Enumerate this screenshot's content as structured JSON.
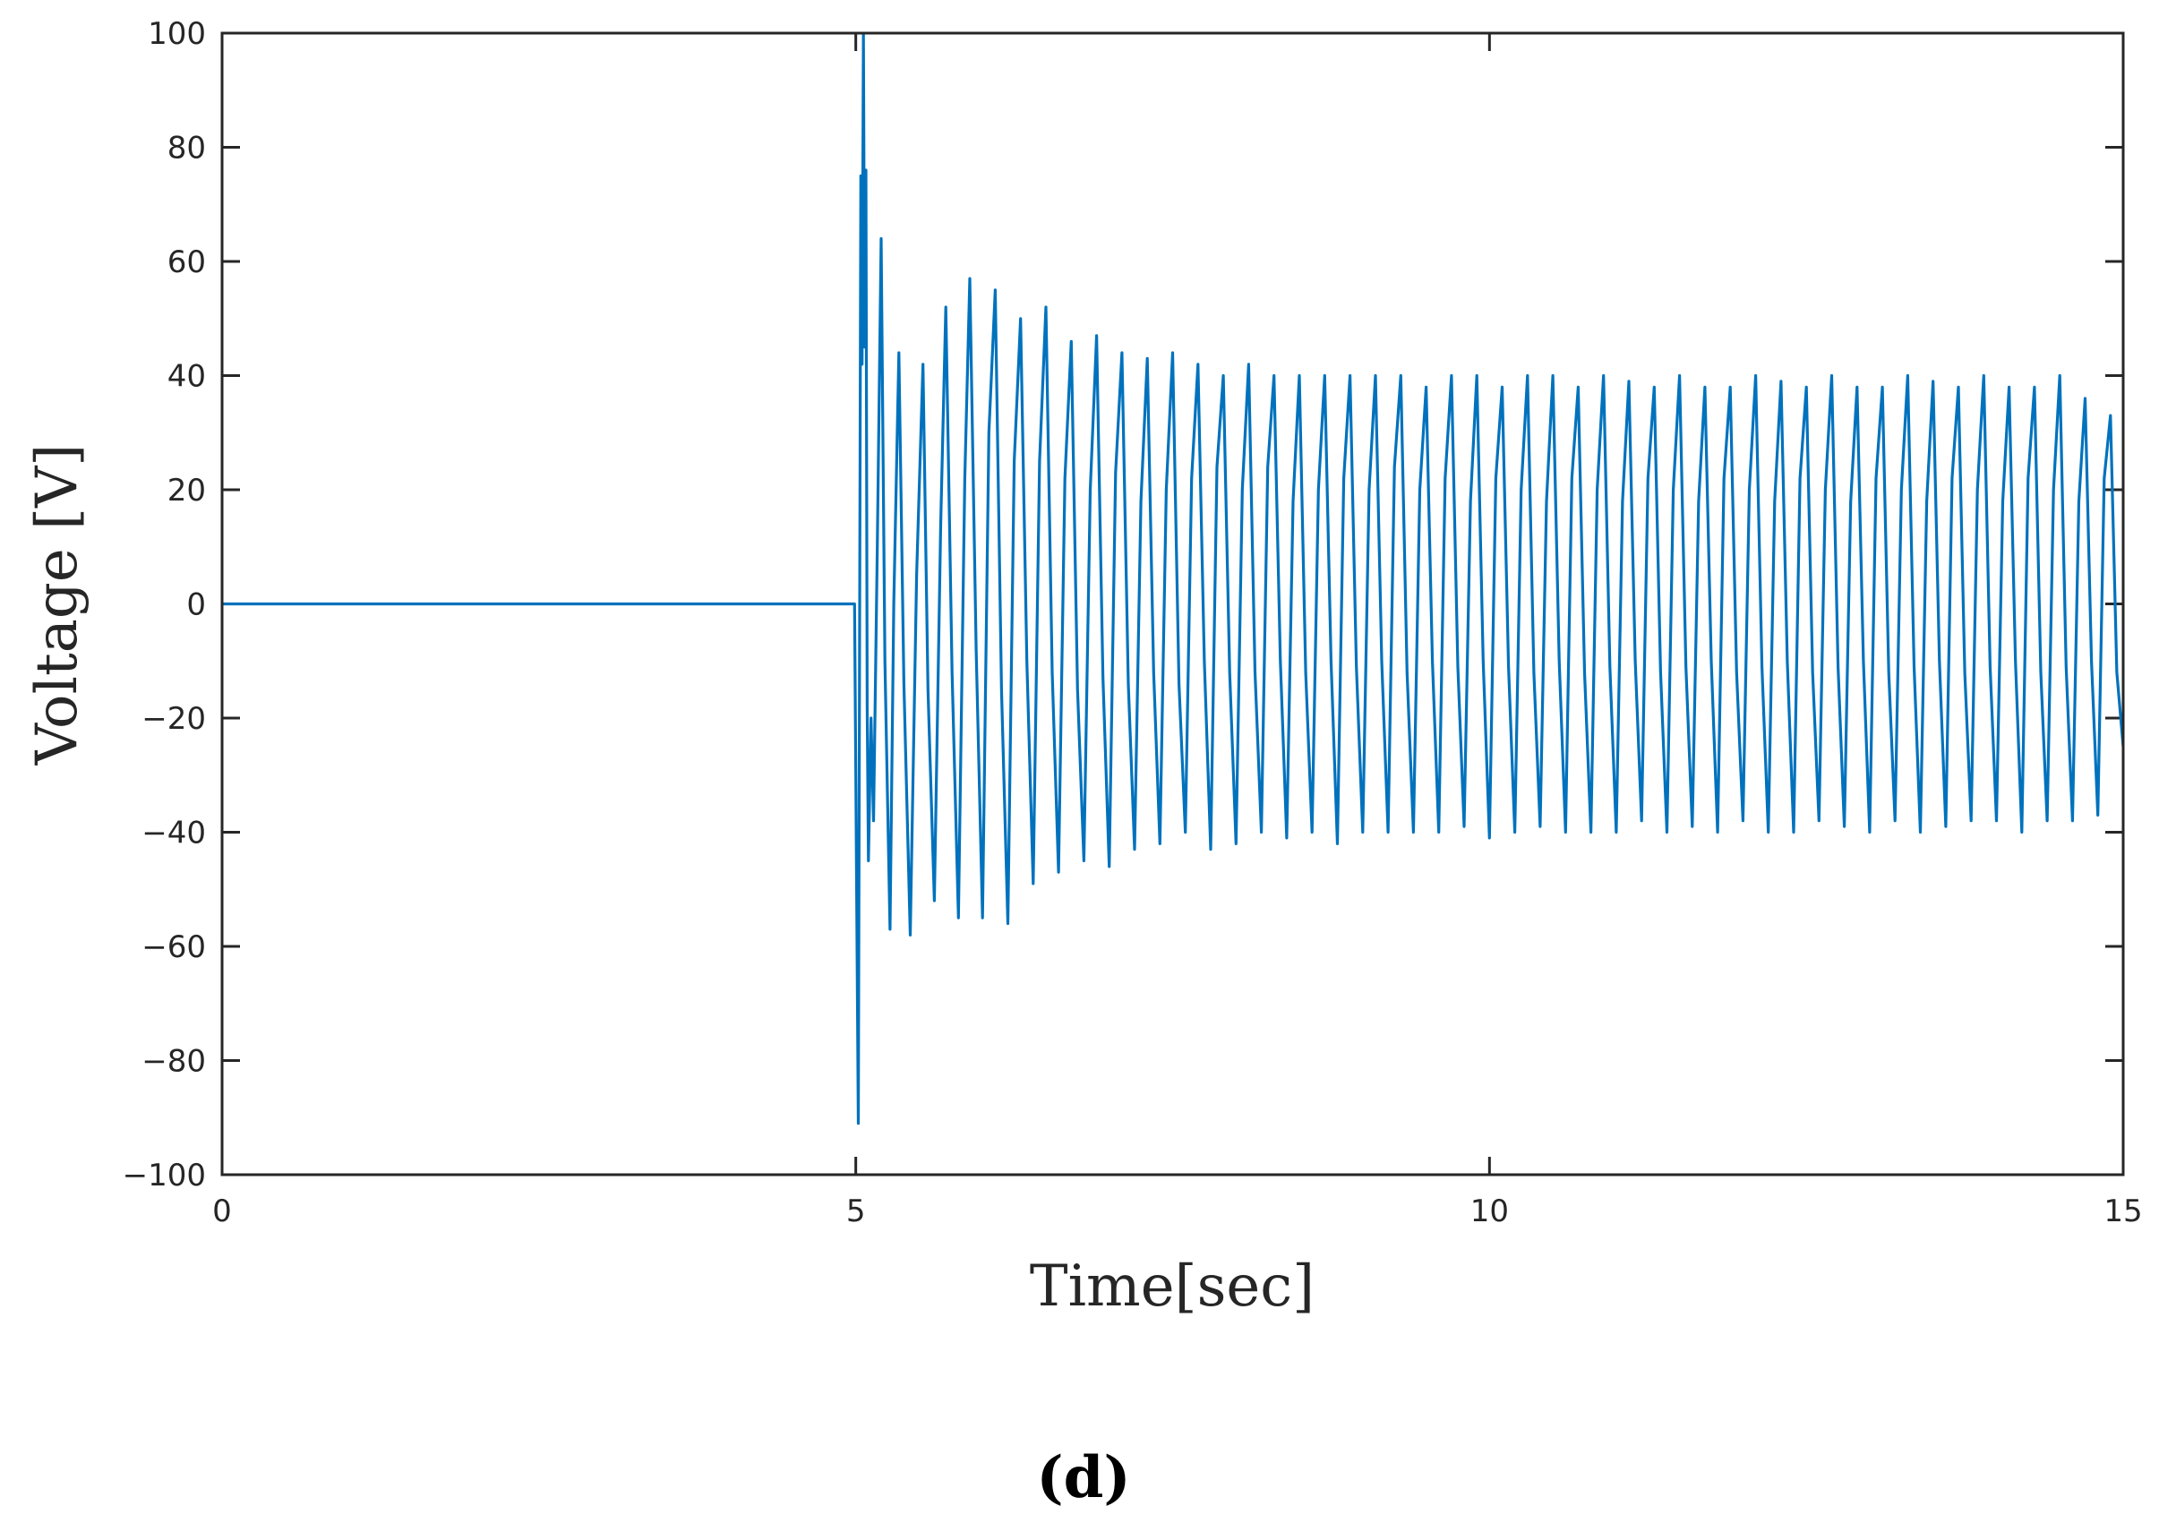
{
  "chart_data": {
    "type": "line",
    "title": "",
    "xlabel": "Time[sec]",
    "ylabel": "Voltage [V]",
    "panel_label": "(d)",
    "xlim": [
      0,
      15
    ],
    "ylim": [
      -100,
      100
    ],
    "xticks": [
      0,
      5,
      10,
      15
    ],
    "yticks": [
      -100,
      -80,
      -60,
      -40,
      -20,
      0,
      20,
      40,
      60,
      80,
      100
    ],
    "grid": false,
    "legend": "none",
    "line_color": "#0072BD",
    "series": [
      {
        "x": [
          0,
          4.99,
          5.0,
          5.02,
          5.04,
          5.05,
          5.06,
          5.07,
          5.08,
          5.09,
          5.1,
          5.12,
          5.14,
          5.17,
          5.2,
          5.23,
          5.27,
          5.3,
          5.34,
          5.38,
          5.43,
          5.48,
          5.53,
          5.57,
          5.62,
          5.67,
          5.71,
          5.76,
          5.81,
          5.86,
          5.9,
          5.95,
          6.0,
          6.05,
          6.1,
          6.15,
          6.2,
          6.25,
          6.3,
          6.35,
          6.4,
          6.45,
          6.5,
          6.55,
          6.6,
          6.65,
          6.7,
          6.75,
          6.8,
          6.85,
          6.9,
          6.95,
          7.0,
          7.05,
          7.1,
          7.15,
          7.2,
          7.25,
          7.3,
          7.35,
          7.4,
          7.45,
          7.5,
          7.55,
          7.6,
          7.65,
          7.7,
          7.75,
          7.8,
          7.85,
          7.9,
          7.95,
          8.0,
          8.05,
          8.1,
          8.15,
          8.2,
          8.25,
          8.3,
          8.35,
          8.4,
          8.45,
          8.5,
          8.55,
          8.6,
          8.65,
          8.7,
          8.75,
          8.8,
          8.85,
          8.9,
          8.95,
          9.0,
          9.05,
          9.1,
          9.15,
          9.2,
          9.25,
          9.3,
          9.35,
          9.4,
          9.45,
          9.5,
          9.55,
          9.6,
          9.65,
          9.7,
          9.75,
          9.8,
          9.85,
          9.9,
          9.95,
          10.0,
          10.05,
          10.1,
          10.15,
          10.2,
          10.25,
          10.3,
          10.35,
          10.4,
          10.45,
          10.5,
          10.55,
          10.6,
          10.65,
          10.7,
          10.75,
          10.8,
          10.85,
          10.9,
          10.95,
          11.0,
          11.05,
          11.1,
          11.15,
          11.2,
          11.25,
          11.3,
          11.35,
          11.4,
          11.45,
          11.5,
          11.55,
          11.6,
          11.65,
          11.7,
          11.75,
          11.8,
          11.85,
          11.9,
          11.95,
          12.0,
          12.05,
          12.1,
          12.15,
          12.2,
          12.25,
          12.3,
          12.35,
          12.4,
          12.45,
          12.5,
          12.55,
          12.6,
          12.65,
          12.7,
          12.75,
          12.8,
          12.85,
          12.9,
          12.95,
          13.0,
          13.05,
          13.1,
          13.15,
          13.2,
          13.25,
          13.3,
          13.35,
          13.4,
          13.45,
          13.5,
          13.55,
          13.6,
          13.65,
          13.7,
          13.75,
          13.8,
          13.85,
          13.9,
          13.95,
          14.0,
          14.05,
          14.1,
          14.15,
          14.2,
          14.25,
          14.3,
          14.35,
          14.4,
          14.45,
          14.5,
          14.55,
          14.6,
          14.65,
          14.7,
          14.75,
          14.8,
          14.85,
          14.9,
          14.95,
          15.0
        ],
        "y": [
          0,
          0,
          -30,
          -91,
          75,
          42,
          100,
          45,
          76,
          -18,
          -45,
          -20,
          -38,
          10,
          64,
          -10,
          -57,
          0,
          44,
          -14,
          -58,
          5,
          42,
          -15,
          -52,
          14,
          52,
          -12,
          -55,
          22,
          57,
          -8,
          -55,
          30,
          55,
          -15,
          -56,
          25,
          50,
          -10,
          -49,
          25,
          52,
          -12,
          -47,
          22,
          46,
          -15,
          -45,
          20,
          47,
          -13,
          -46,
          23,
          44,
          -14,
          -43,
          18,
          43,
          -12,
          -42,
          20,
          44,
          -14,
          -40,
          22,
          42,
          -10,
          -43,
          24,
          40,
          -12,
          -42,
          20,
          42,
          -12,
          -40,
          24,
          40,
          -10,
          -41,
          18,
          40,
          -12,
          -40,
          20,
          40,
          -10,
          -42,
          22,
          40,
          -11,
          -40,
          20,
          40,
          -10,
          -40,
          24,
          40,
          -12,
          -40,
          20,
          38,
          -10,
          -40,
          22,
          40,
          -11,
          -39,
          18,
          40,
          -10,
          -41,
          22,
          38,
          -11,
          -40,
          20,
          40,
          -12,
          -39,
          18,
          40,
          -10,
          -40,
          22,
          38,
          -12,
          -40,
          20,
          40,
          -11,
          -40,
          18,
          39,
          -10,
          -38,
          22,
          38,
          -12,
          -40,
          20,
          40,
          -11,
          -39,
          18,
          38,
          -10,
          -40,
          22,
          38,
          -12,
          -38,
          20,
          40,
          -11,
          -40,
          18,
          39,
          -10,
          -40,
          22,
          38,
          -12,
          -38,
          20,
          40,
          -11,
          -39,
          18,
          38,
          -10,
          -40,
          22,
          38,
          -12,
          -38,
          20,
          40,
          -11,
          -40,
          18,
          39,
          -10,
          -39,
          22,
          38,
          -12,
          -38,
          20,
          40,
          -11,
          -38,
          18,
          38,
          -10,
          -40,
          22,
          38,
          -12,
          -38,
          20,
          40,
          -11,
          -38,
          18,
          36,
          -10,
          -37,
          22,
          33,
          -12,
          -25
        ]
      }
    ]
  }
}
